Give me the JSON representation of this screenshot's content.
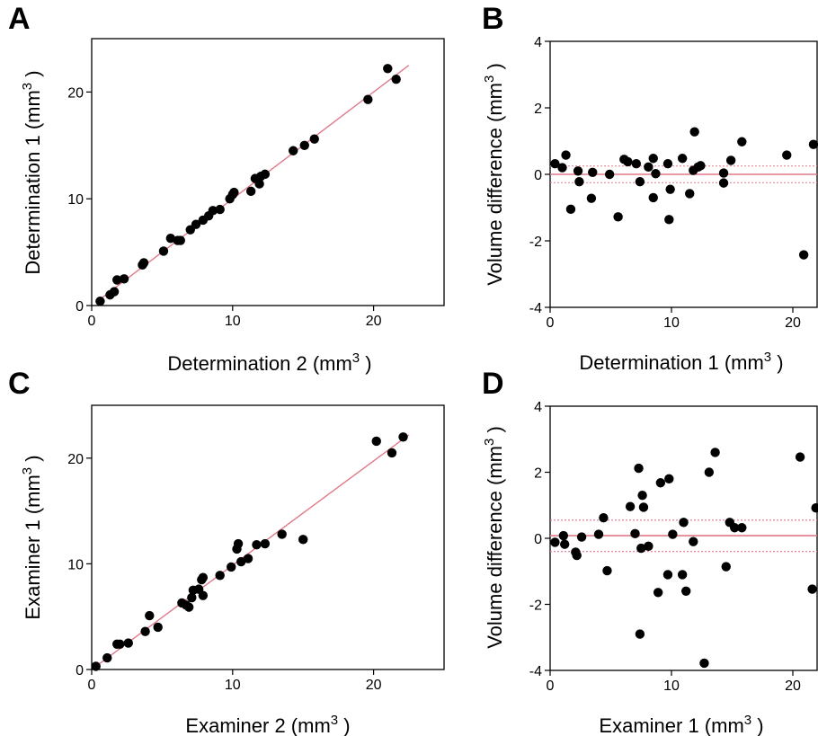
{
  "figure": {
    "panels": [
      "A",
      "B",
      "C",
      "D"
    ]
  },
  "chart_data": [
    {
      "id": "A",
      "type": "scatter",
      "xlabel": "Determination 2 (mm",
      "xlabel_sup": "3",
      "xlabel_suffix": " )",
      "ylabel": "Determination 1 (mm",
      "ylabel_sup": "3",
      "ylabel_suffix": " )",
      "xlim": [
        0,
        25
      ],
      "ylim": [
        0,
        25
      ],
      "xticks": [
        0,
        10,
        20
      ],
      "yticks": [
        0,
        10,
        20
      ],
      "grid": false,
      "point_color": "#000000",
      "line_color": "#e07a8a",
      "fit_line": [
        [
          0.5,
          0.5
        ],
        [
          22.5,
          22.5
        ]
      ],
      "points": [
        [
          0.6,
          0.4
        ],
        [
          1.3,
          1.0
        ],
        [
          1.6,
          1.3
        ],
        [
          1.8,
          2.4
        ],
        [
          2.3,
          2.5
        ],
        [
          3.6,
          3.8
        ],
        [
          3.7,
          4.0
        ],
        [
          5.1,
          5.1
        ],
        [
          5.6,
          6.3
        ],
        [
          6.1,
          6.1
        ],
        [
          6.3,
          6.1
        ],
        [
          7.0,
          7.1
        ],
        [
          7.4,
          7.6
        ],
        [
          7.9,
          8.0
        ],
        [
          8.3,
          8.4
        ],
        [
          8.6,
          8.9
        ],
        [
          9.1,
          9.0
        ],
        [
          9.8,
          10.0
        ],
        [
          10.0,
          10.4
        ],
        [
          10.1,
          10.6
        ],
        [
          11.3,
          10.7
        ],
        [
          11.6,
          11.9
        ],
        [
          11.9,
          11.4
        ],
        [
          12.0,
          12.1
        ],
        [
          12.3,
          12.3
        ],
        [
          14.3,
          14.5
        ],
        [
          15.1,
          15.0
        ],
        [
          15.8,
          15.6
        ],
        [
          19.6,
          19.3
        ],
        [
          21.0,
          22.2
        ],
        [
          21.6,
          21.2
        ]
      ]
    },
    {
      "id": "B",
      "type": "scatter",
      "xlabel": "Determination 1 (mm",
      "xlabel_sup": "3",
      "xlabel_suffix": " )",
      "ylabel": "Volume difference (mm",
      "ylabel_sup": "3",
      "ylabel_suffix": " )",
      "xlim": [
        0,
        22
      ],
      "ylim": [
        -4,
        4
      ],
      "xticks": [
        0,
        10,
        20
      ],
      "yticks": [
        -4,
        -2,
        0,
        2,
        4
      ],
      "grid": false,
      "point_color": "#000000",
      "line_color": "#e07a8a",
      "mean": 0.0,
      "limits": [
        0.25,
        -0.25
      ],
      "points": [
        [
          0.4,
          0.32
        ],
        [
          1.0,
          0.2
        ],
        [
          1.3,
          0.58
        ],
        [
          1.7,
          -1.05
        ],
        [
          2.3,
          0.1
        ],
        [
          2.4,
          -0.22
        ],
        [
          3.4,
          -0.72
        ],
        [
          3.5,
          0.06
        ],
        [
          4.9,
          0.0
        ],
        [
          5.6,
          -1.28
        ],
        [
          6.1,
          0.45
        ],
        [
          6.4,
          0.38
        ],
        [
          7.1,
          0.32
        ],
        [
          7.4,
          -0.22
        ],
        [
          8.1,
          0.22
        ],
        [
          8.5,
          0.48
        ],
        [
          8.5,
          -0.7
        ],
        [
          8.7,
          0.02
        ],
        [
          9.7,
          0.32
        ],
        [
          9.8,
          -1.36
        ],
        [
          9.9,
          -0.45
        ],
        [
          10.9,
          0.48
        ],
        [
          11.5,
          -0.58
        ],
        [
          11.8,
          0.12
        ],
        [
          11.9,
          1.28
        ],
        [
          12.2,
          0.22
        ],
        [
          12.4,
          0.26
        ],
        [
          14.3,
          0.04
        ],
        [
          14.3,
          -0.26
        ],
        [
          14.9,
          0.42
        ],
        [
          15.8,
          0.98
        ],
        [
          19.5,
          0.58
        ],
        [
          20.9,
          -2.42
        ],
        [
          21.7,
          0.9
        ]
      ]
    },
    {
      "id": "C",
      "type": "scatter",
      "xlabel": "Examiner 2 (mm",
      "xlabel_sup": "3",
      "xlabel_suffix": " )",
      "ylabel": "Examiner 1 (mm",
      "ylabel_sup": "3",
      "ylabel_suffix": " )",
      "xlim": [
        0,
        25
      ],
      "ylim": [
        0,
        25
      ],
      "xticks": [
        0,
        10,
        20
      ],
      "yticks": [
        0,
        10,
        20
      ],
      "grid": false,
      "point_color": "#000000",
      "line_color": "#e07a8a",
      "fit_line": [
        [
          0.2,
          0.2
        ],
        [
          22.5,
          22.2
        ]
      ],
      "points": [
        [
          0.3,
          0.3
        ],
        [
          1.1,
          1.1
        ],
        [
          1.8,
          2.4
        ],
        [
          2.0,
          2.4
        ],
        [
          2.6,
          2.5
        ],
        [
          3.8,
          3.6
        ],
        [
          4.1,
          5.1
        ],
        [
          4.7,
          4.0
        ],
        [
          6.4,
          6.3
        ],
        [
          6.7,
          6.1
        ],
        [
          6.9,
          5.9
        ],
        [
          7.1,
          6.8
        ],
        [
          7.2,
          7.5
        ],
        [
          7.6,
          7.6
        ],
        [
          7.8,
          8.5
        ],
        [
          7.9,
          8.7
        ],
        [
          7.9,
          7.0
        ],
        [
          9.1,
          8.9
        ],
        [
          9.9,
          9.7
        ],
        [
          10.3,
          11.4
        ],
        [
          10.4,
          11.9
        ],
        [
          10.6,
          10.2
        ],
        [
          11.1,
          10.5
        ],
        [
          11.7,
          11.8
        ],
        [
          12.3,
          11.9
        ],
        [
          13.5,
          12.8
        ],
        [
          15.0,
          12.3
        ],
        [
          20.2,
          21.6
        ],
        [
          21.3,
          20.5
        ],
        [
          22.1,
          22.0
        ]
      ]
    },
    {
      "id": "D",
      "type": "scatter",
      "xlabel": "Examiner 1 (mm",
      "xlabel_sup": "3",
      "xlabel_suffix": " )",
      "ylabel": "Volume difference (mm",
      "ylabel_sup": "3",
      "ylabel_suffix": " )",
      "xlim": [
        0,
        22
      ],
      "ylim": [
        -4,
        4
      ],
      "xticks": [
        0,
        10,
        20
      ],
      "yticks": [
        -4,
        -2,
        0,
        2,
        4
      ],
      "grid": false,
      "point_color": "#000000",
      "line_color": "#e07a8a",
      "mean": 0.08,
      "limits": [
        0.55,
        -0.4
      ],
      "points": [
        [
          0.4,
          -0.12
        ],
        [
          1.1,
          0.08
        ],
        [
          1.2,
          -0.18
        ],
        [
          2.1,
          -0.42
        ],
        [
          2.2,
          -0.52
        ],
        [
          2.6,
          0.04
        ],
        [
          4.0,
          0.12
        ],
        [
          4.4,
          0.62
        ],
        [
          4.7,
          -0.98
        ],
        [
          6.6,
          0.96
        ],
        [
          7.0,
          0.14
        ],
        [
          7.3,
          2.12
        ],
        [
          7.4,
          -2.9
        ],
        [
          7.5,
          -0.3
        ],
        [
          7.6,
          1.3
        ],
        [
          7.7,
          0.94
        ],
        [
          8.1,
          -0.24
        ],
        [
          8.9,
          -1.64
        ],
        [
          9.1,
          1.68
        ],
        [
          9.7,
          -1.1
        ],
        [
          9.8,
          1.8
        ],
        [
          10.1,
          0.12
        ],
        [
          10.9,
          -1.1
        ],
        [
          11.0,
          0.48
        ],
        [
          11.2,
          -1.6
        ],
        [
          11.8,
          -0.1
        ],
        [
          12.7,
          -3.78
        ],
        [
          13.1,
          2.0
        ],
        [
          13.6,
          2.6
        ],
        [
          14.5,
          -0.86
        ],
        [
          14.8,
          0.48
        ],
        [
          15.2,
          0.32
        ],
        [
          15.8,
          0.32
        ],
        [
          20.6,
          2.46
        ],
        [
          21.6,
          -1.54
        ],
        [
          21.9,
          0.92
        ]
      ]
    }
  ]
}
